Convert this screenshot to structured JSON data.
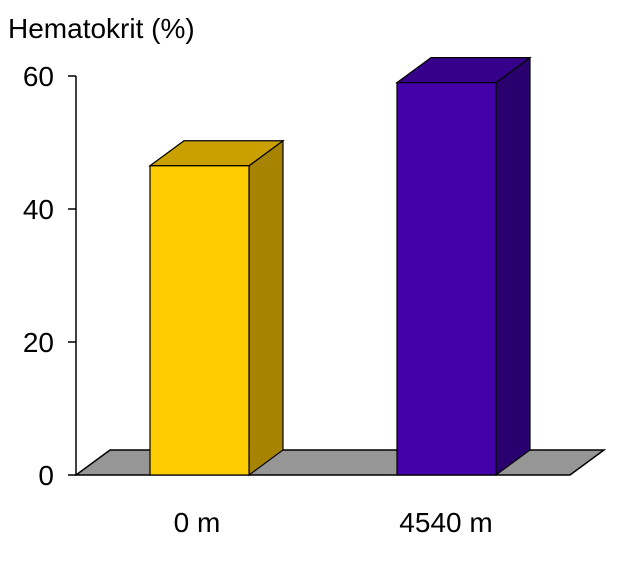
{
  "chart_data": {
    "type": "bar",
    "title": "Hematokrit (%)",
    "xlabel": "",
    "ylabel": "",
    "categories": [
      "0 m",
      "4540 m"
    ],
    "values": [
      46.5,
      59.0
    ],
    "ylim": [
      0,
      60
    ],
    "yticks": [
      "0",
      "20",
      "40",
      "60"
    ],
    "grid": false,
    "colors": {
      "bar_front": [
        "#ffcc00",
        "#4400a8"
      ],
      "bar_side": [
        "#a68400",
        "#2a006e"
      ],
      "bar_top": [
        "#c9a000",
        "#36008a"
      ],
      "floor": "#969696"
    }
  }
}
